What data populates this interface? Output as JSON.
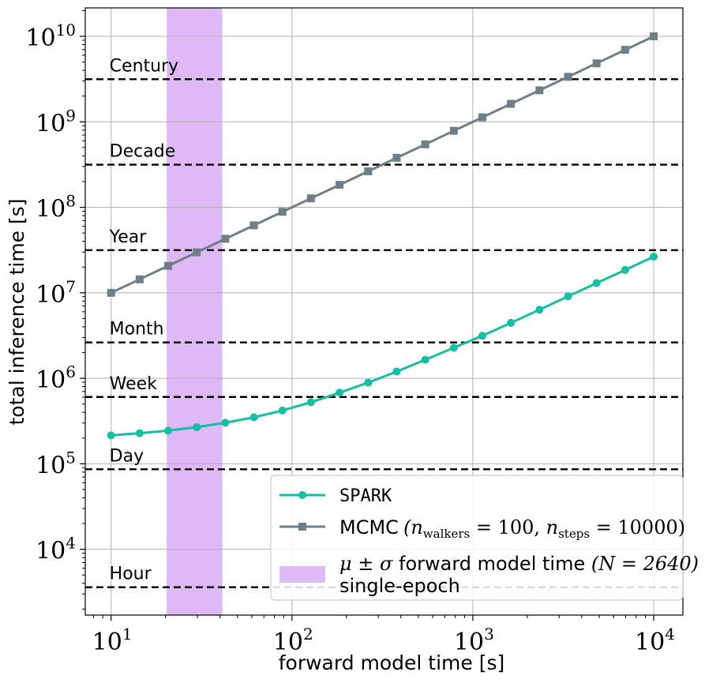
{
  "chart_data": {
    "type": "line",
    "xscale": "log",
    "yscale": "log",
    "xlabel": "forward model time [s]",
    "ylabel": "total inference time [s]",
    "xlim": [
      7.2,
      14500
    ],
    "ylim": [
      1700,
      21500000000
    ],
    "grid": true,
    "xticks": [
      {
        "value": 10,
        "base": "10",
        "exp": "1"
      },
      {
        "value": 100,
        "base": "10",
        "exp": "2"
      },
      {
        "value": 1000,
        "base": "10",
        "exp": "3"
      },
      {
        "value": 10000,
        "base": "10",
        "exp": "4"
      }
    ],
    "yticks": [
      {
        "value": 10000,
        "base": "10",
        "exp": "4"
      },
      {
        "value": 100000,
        "base": "10",
        "exp": "5"
      },
      {
        "value": 1000000,
        "base": "10",
        "exp": "6"
      },
      {
        "value": 10000000,
        "base": "10",
        "exp": "7"
      },
      {
        "value": 100000000,
        "base": "10",
        "exp": "8"
      },
      {
        "value": 1000000000,
        "base": "10",
        "exp": "9"
      },
      {
        "value": 10000000000,
        "base": "10",
        "exp": "10"
      }
    ],
    "x": [
      10,
      14.38,
      20.69,
      29.76,
      42.81,
      61.58,
      88.59,
      127.4,
      183.3,
      263.7,
      379.3,
      545.6,
      784.8,
      1129,
      1624,
      2336,
      3360,
      4833,
      6952,
      10000
    ],
    "series": [
      {
        "name": "SPARK",
        "color": "#14bfa6",
        "marker": "circle",
        "values": [
          215000,
          228000,
          244000,
          268000,
          302000,
          350000,
          420000,
          525000,
          680000,
          890000,
          1200000,
          1650000,
          2280000,
          3150000,
          4450000,
          6350000,
          9100000,
          13000000,
          18500000,
          26500000
        ]
      },
      {
        "name": "MCMC",
        "color": "#6e7f87",
        "marker": "square",
        "values": [
          10000000,
          14380000,
          20690000,
          29760000,
          42810000,
          61580000,
          88590000,
          127400000,
          183300000,
          263700000,
          379300000,
          545600000,
          784800000,
          1129000000,
          1624000000,
          2336000000,
          3360000000,
          4833000000,
          6952000000,
          10000000000
        ]
      }
    ],
    "band": {
      "x_low": 20.3,
      "x_high": 41.2,
      "color": "#dfb8f6"
    },
    "reference_lines": [
      {
        "label": "Hour",
        "value": 3600
      },
      {
        "label": "Day",
        "value": 86400
      },
      {
        "label": "Week",
        "value": 604800
      },
      {
        "label": "Month",
        "value": 2628000
      },
      {
        "label": "Year",
        "value": 31536000
      },
      {
        "label": "Decade",
        "value": 315360000
      },
      {
        "label": "Century",
        "value": 3153600000
      }
    ],
    "legend": {
      "position": "lower right",
      "spark_label": "SPARK",
      "mcmc_label": "MCMC",
      "mcmc_math_open": "(",
      "mcmc_n": "n",
      "mcmc_sub_walkers": "walkers",
      "mcmc_eq_walkers": " = 100, ",
      "mcmc_sub_steps": "steps",
      "mcmc_eq_steps": " = 10000)",
      "band_math_prefix": "μ ± σ",
      "band_label_mid": " forward model time ",
      "band_math_suffix": "(N = 2640)",
      "band_line2": "single-epoch"
    }
  }
}
